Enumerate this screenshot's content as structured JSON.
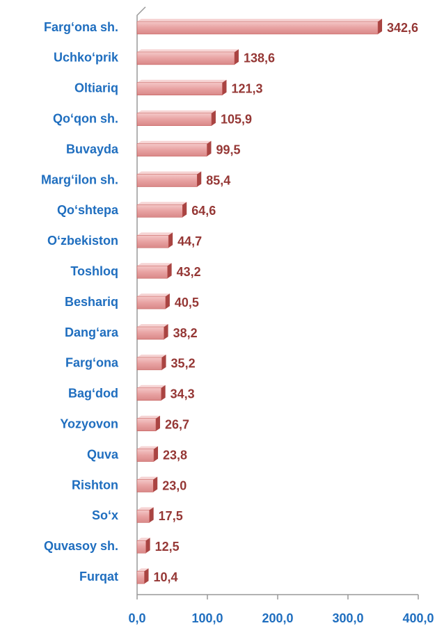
{
  "chart_data": {
    "type": "bar",
    "orientation": "horizontal",
    "categories": [
      "Farg‘ona sh.",
      "Uchko‘prik",
      "Oltiariq",
      "Qo‘qon sh.",
      "Buvayda",
      "Marg‘ilon sh.",
      "Qo‘shtepa",
      "O‘zbekiston",
      "Toshloq",
      "Beshariq",
      "Dang‘ara",
      "Farg‘ona",
      "Bag‘dod",
      "Yozyovon",
      "Quva",
      "Rishton",
      "So‘x",
      "Quvasoy sh.",
      "Furqat"
    ],
    "values": [
      342.6,
      138.6,
      121.3,
      105.9,
      99.5,
      85.4,
      64.6,
      44.7,
      43.2,
      40.5,
      38.2,
      35.2,
      34.3,
      26.7,
      23.8,
      23.0,
      17.5,
      12.5,
      10.4
    ],
    "value_labels": [
      "342,6",
      "138,6",
      "121,3",
      "105,9",
      "99,5",
      "85,4",
      "64,6",
      "44,7",
      "43,2",
      "40,5",
      "38,2",
      "35,2",
      "34,3",
      "26,7",
      "23,8",
      "23,0",
      "17,5",
      "12,5",
      "10,4"
    ],
    "color": "#e8a2a2",
    "xlim": [
      0,
      400
    ],
    "xticks": [
      {
        "value": 0,
        "label": "0,0"
      },
      {
        "value": 100,
        "label": "100,0"
      },
      {
        "value": 200,
        "label": "200,0"
      },
      {
        "value": 300,
        "label": "300,0"
      },
      {
        "value": 400,
        "label": "400,0"
      }
    ],
    "grid": false
  }
}
